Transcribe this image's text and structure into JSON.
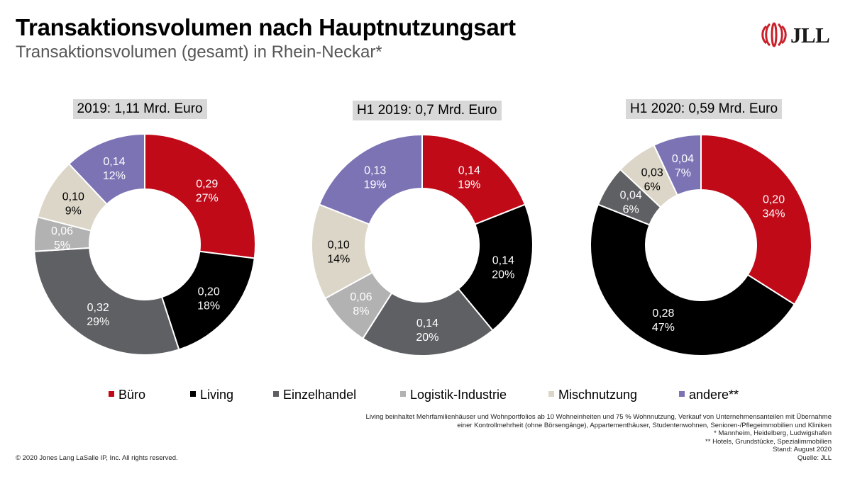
{
  "header": {
    "title": "Transaktionsvolumen nach Hauptnutzungsart",
    "subtitle": "Transaktionsvolumen (gesamt) in Rhein-Neckar*",
    "logo_text": "JLL"
  },
  "colors": {
    "Büro": "#c00a18",
    "Living": "#000000",
    "Einzelhandel": "#5f6063",
    "Logistik-Industrie": "#b2b2b2",
    "Mischnutzung": "#dcd6c8",
    "andere**": "#7b73b4",
    "logo_red": "#c9202a"
  },
  "chart_data": [
    {
      "type": "pie",
      "style": "donut",
      "title": "2019: 1,11 Mrd. Euro",
      "categories": [
        "Büro",
        "Living",
        "Einzelhandel",
        "Logistik-Industrie",
        "Mischnutzung",
        "andere**"
      ],
      "values": [
        0.29,
        0.2,
        0.32,
        0.06,
        0.1,
        0.14
      ],
      "value_labels": [
        "0,29",
        "0,20",
        "0,32",
        "0,06",
        "0,10",
        "0,14"
      ],
      "percent_labels": [
        "27%",
        "18%",
        "29%",
        "5%",
        "9%",
        "12%"
      ],
      "percents": [
        27,
        18,
        29,
        5,
        9,
        12
      ]
    },
    {
      "type": "pie",
      "style": "donut",
      "title": "H1 2019: 0,7 Mrd. Euro",
      "categories": [
        "Büro",
        "Living",
        "Einzelhandel",
        "Logistik-Industrie",
        "Mischnutzung",
        "andere**"
      ],
      "values": [
        0.14,
        0.14,
        0.14,
        0.06,
        0.1,
        0.13
      ],
      "value_labels": [
        "0,14",
        "0,14",
        "0,14",
        "0,06",
        "0,10",
        "0,13"
      ],
      "percent_labels": [
        "19%",
        "20%",
        "20%",
        "8%",
        "14%",
        "19%"
      ],
      "percents": [
        19,
        20,
        20,
        8,
        14,
        19
      ]
    },
    {
      "type": "pie",
      "style": "donut",
      "title": "H1 2020: 0,59 Mrd. Euro",
      "categories": [
        "Büro",
        "Living",
        "Einzelhandel",
        "Mischnutzung",
        "andere**"
      ],
      "values": [
        0.2,
        0.28,
        0.04,
        0.03,
        0.04
      ],
      "value_labels": [
        "0,20",
        "0,28",
        "0,04",
        "0,03",
        "0,04"
      ],
      "percent_labels": [
        "34%",
        "47%",
        "6%",
        "6%",
        "7%"
      ],
      "percents": [
        34,
        47,
        6,
        6,
        7
      ]
    }
  ],
  "legend": {
    "items": [
      {
        "label": "Büro",
        "color": "#c00a18"
      },
      {
        "label": "Living",
        "color": "#000000"
      },
      {
        "label": "Einzelhandel",
        "color": "#5f6063"
      },
      {
        "label": "Logistik-Industrie",
        "color": "#b2b2b2"
      },
      {
        "label": "Mischnutzung",
        "color": "#dcd6c8"
      },
      {
        "label": "andere**",
        "color": "#7b73b4"
      }
    ]
  },
  "footnotes": {
    "lines": [
      "Living beinhaltet Mehrfamilienhäuser und Wohnportfolios ab 10 Wohneinheiten und 75 % Wohnnutzung, Verkauf von Unternehmensanteilen mit Übernahme",
      "einer Kontrollmehrheit (ohne Börsengänge), Appartementhäuser, Studentenwohnen, Senioren-/Pflegeimmobilien und Kliniken",
      "* Mannheim, Heidelberg, Ludwigshafen",
      "** Hotels, Grundstücke, Spezialimmobilien",
      "Stand: August 2020",
      "Quelle: JLL"
    ],
    "copyright": "© 2020 Jones Lang LaSalle IP, Inc. All rights reserved."
  }
}
